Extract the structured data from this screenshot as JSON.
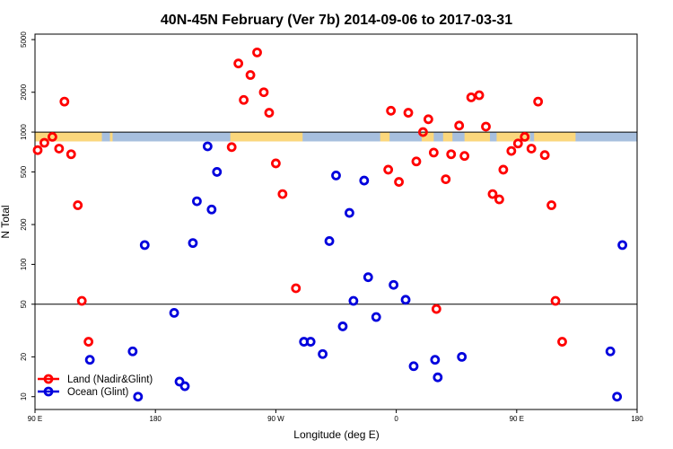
{
  "chart_data": {
    "type": "scatter",
    "title": "40N-45N February (Ver 7b)   2014-09-06 to 2017-03-31",
    "xlabel": "Longitude (deg E)",
    "ylabel": "N Total",
    "x_scale": "linear",
    "y_scale": "log",
    "xlim": [
      90,
      540
    ],
    "ylim": [
      8,
      5500
    ],
    "x_ticks": [
      {
        "value": 90,
        "label": "90 E"
      },
      {
        "value": 180,
        "label": "180"
      },
      {
        "value": 270,
        "label": "90 W"
      },
      {
        "value": 360,
        "label": "0"
      },
      {
        "value": 450,
        "label": "90 E"
      },
      {
        "value": 540,
        "label": "180"
      }
    ],
    "y_ticks": [
      10,
      20,
      50,
      100,
      200,
      500,
      1000,
      2000,
      5000
    ],
    "hlines": [
      50,
      1000
    ],
    "grid": false,
    "legend_position": "bottom-left",
    "land_strip": {
      "y_low": 850,
      "y_high": 1000,
      "land_color": "#fbd77c",
      "ocean_color": "#a7bfde",
      "land_segments": [
        [
          90,
          140
        ],
        [
          146,
          148
        ],
        [
          236,
          290
        ],
        [
          348,
          355
        ],
        [
          379,
          388
        ],
        [
          395,
          402
        ],
        [
          411,
          430
        ],
        [
          435,
          460
        ],
        [
          463,
          494
        ]
      ]
    },
    "series": [
      {
        "name": "Land (Nadir&Glint)",
        "color": "#ff0000",
        "points": [
          [
            92,
            730
          ],
          [
            97,
            830
          ],
          [
            103,
            920
          ],
          [
            108,
            750
          ],
          [
            112,
            1700
          ],
          [
            117,
            680
          ],
          [
            122,
            280
          ],
          [
            125,
            53
          ],
          [
            130,
            26
          ],
          [
            237,
            770
          ],
          [
            242,
            3300
          ],
          [
            246,
            1750
          ],
          [
            251,
            2700
          ],
          [
            256,
            4000
          ],
          [
            261,
            2000
          ],
          [
            265,
            1400
          ],
          [
            270,
            580
          ],
          [
            275,
            340
          ],
          [
            285,
            66
          ],
          [
            354,
            520
          ],
          [
            356,
            1450
          ],
          [
            362,
            420
          ],
          [
            369,
            1400
          ],
          [
            375,
            600
          ],
          [
            380,
            1000
          ],
          [
            384,
            1250
          ],
          [
            388,
            700
          ],
          [
            397,
            440
          ],
          [
            401,
            680
          ],
          [
            407,
            1120
          ],
          [
            411,
            660
          ],
          [
            416,
            1830
          ],
          [
            422,
            1900
          ],
          [
            427,
            1100
          ],
          [
            432,
            340
          ],
          [
            437,
            310
          ],
          [
            440,
            520
          ],
          [
            446,
            720
          ],
          [
            451,
            820
          ],
          [
            456,
            920
          ],
          [
            461,
            750
          ],
          [
            466,
            1700
          ],
          [
            471,
            670
          ],
          [
            476,
            280
          ],
          [
            479,
            53
          ],
          [
            484,
            26
          ],
          [
            390,
            46
          ]
        ]
      },
      {
        "name": "Ocean (Glint)",
        "color": "#0000dd",
        "points": [
          [
            131,
            19
          ],
          [
            163,
            22
          ],
          [
            167,
            10
          ],
          [
            172,
            140
          ],
          [
            194,
            43
          ],
          [
            198,
            13
          ],
          [
            202,
            12
          ],
          [
            208,
            145
          ],
          [
            211,
            300
          ],
          [
            219,
            780
          ],
          [
            222,
            260
          ],
          [
            226,
            500
          ],
          [
            291,
            26
          ],
          [
            296,
            26
          ],
          [
            305,
            21
          ],
          [
            310,
            150
          ],
          [
            315,
            470
          ],
          [
            320,
            34
          ],
          [
            325,
            245
          ],
          [
            328,
            53
          ],
          [
            336,
            430
          ],
          [
            339,
            80
          ],
          [
            345,
            40
          ],
          [
            358,
            70
          ],
          [
            367,
            54
          ],
          [
            373,
            17
          ],
          [
            389,
            19
          ],
          [
            391,
            14
          ],
          [
            409,
            20
          ],
          [
            520,
            22
          ],
          [
            525,
            10
          ],
          [
            529,
            140
          ]
        ]
      }
    ]
  }
}
